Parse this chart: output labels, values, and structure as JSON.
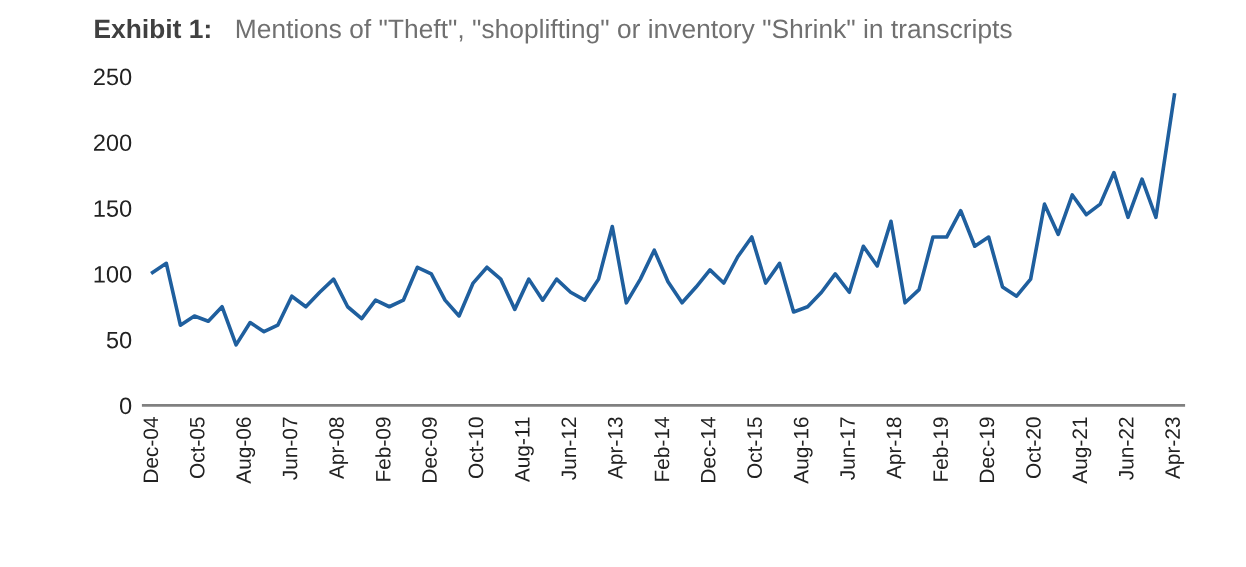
{
  "chart_data": {
    "type": "line",
    "title": "Exhibit 1:",
    "subtitle": "Mentions of \"Theft\", \"shoplifting\" or inventory \"Shrink\" in transcripts",
    "x": [
      "2004-12",
      "2005-03",
      "2005-06",
      "2005-09",
      "2005-12",
      "2006-03",
      "2006-06",
      "2006-09",
      "2006-12",
      "2007-03",
      "2007-06",
      "2007-09",
      "2007-12",
      "2008-03",
      "2008-06",
      "2008-09",
      "2008-12",
      "2009-03",
      "2009-06",
      "2009-09",
      "2009-12",
      "2010-03",
      "2010-06",
      "2010-09",
      "2010-12",
      "2011-03",
      "2011-06",
      "2011-09",
      "2011-12",
      "2012-03",
      "2012-06",
      "2012-09",
      "2012-12",
      "2013-03",
      "2013-06",
      "2013-09",
      "2013-12",
      "2014-03",
      "2014-06",
      "2014-09",
      "2014-12",
      "2015-03",
      "2015-06",
      "2015-09",
      "2015-12",
      "2016-03",
      "2016-06",
      "2016-09",
      "2016-12",
      "2017-03",
      "2017-06",
      "2017-09",
      "2017-12",
      "2018-03",
      "2018-06",
      "2018-09",
      "2018-12",
      "2019-03",
      "2019-06",
      "2019-09",
      "2019-12",
      "2020-03",
      "2020-06",
      "2020-09",
      "2020-12",
      "2021-03",
      "2021-06",
      "2021-09",
      "2021-12",
      "2022-03",
      "2022-06",
      "2022-09",
      "2022-12",
      "2023-04"
    ],
    "series": [
      {
        "color": "#1f5f9e",
        "values": [
          101,
          108,
          61,
          68,
          64,
          75,
          46,
          63,
          56,
          61,
          83,
          75,
          86,
          96,
          75,
          66,
          80,
          75,
          80,
          105,
          100,
          80,
          68,
          93,
          105,
          96,
          73,
          96,
          80,
          96,
          86,
          80,
          96,
          136,
          78,
          96,
          118,
          94,
          78,
          90,
          103,
          93,
          113,
          128,
          93,
          108,
          71,
          75,
          86,
          100,
          86,
          121,
          106,
          140,
          78,
          88,
          128,
          128,
          148,
          121,
          128,
          90,
          83,
          96,
          153,
          130,
          160,
          145,
          153,
          177,
          143,
          172,
          143,
          236
        ]
      }
    ],
    "xlim": [
      "2004-10",
      "2023-06"
    ],
    "xticks": [
      {
        "value": "2004-12",
        "label": "Dec-04"
      },
      {
        "value": "2005-10",
        "label": "Oct-05"
      },
      {
        "value": "2006-08",
        "label": "Aug-06"
      },
      {
        "value": "2007-06",
        "label": "Jun-07"
      },
      {
        "value": "2008-04",
        "label": "Apr-08"
      },
      {
        "value": "2009-02",
        "label": "Feb-09"
      },
      {
        "value": "2009-12",
        "label": "Dec-09"
      },
      {
        "value": "2010-10",
        "label": "Oct-10"
      },
      {
        "value": "2011-08",
        "label": "Aug-11"
      },
      {
        "value": "2012-06",
        "label": "Jun-12"
      },
      {
        "value": "2013-04",
        "label": "Apr-13"
      },
      {
        "value": "2014-02",
        "label": "Feb-14"
      },
      {
        "value": "2014-12",
        "label": "Dec-14"
      },
      {
        "value": "2015-10",
        "label": "Oct-15"
      },
      {
        "value": "2016-08",
        "label": "Aug-16"
      },
      {
        "value": "2017-06",
        "label": "Jun-17"
      },
      {
        "value": "2018-04",
        "label": "Apr-18"
      },
      {
        "value": "2019-02",
        "label": "Feb-19"
      },
      {
        "value": "2019-12",
        "label": "Dec-19"
      },
      {
        "value": "2020-10",
        "label": "Oct-20"
      },
      {
        "value": "2021-08",
        "label": "Aug-21"
      },
      {
        "value": "2022-06",
        "label": "Jun-22"
      },
      {
        "value": "2023-04",
        "label": "Apr-23"
      }
    ],
    "ylim": [
      0,
      250
    ],
    "yticks": [
      0,
      50,
      100,
      150,
      200,
      250
    ],
    "grid": false,
    "legend": false
  }
}
